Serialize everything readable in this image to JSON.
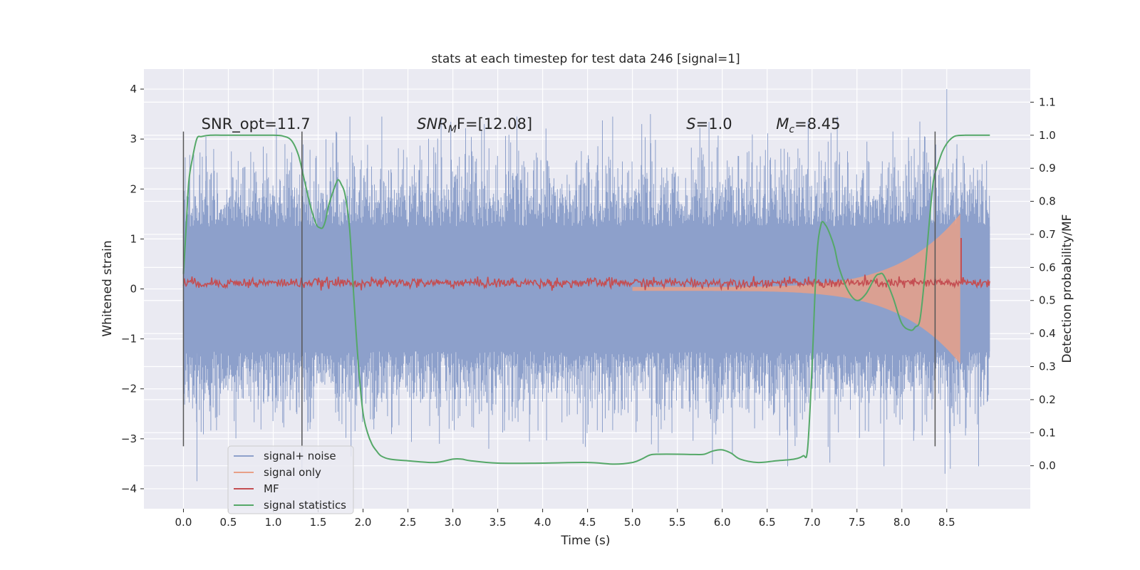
{
  "chart_data": {
    "type": "line",
    "title": "stats at each timestep for test data 246 [signal=1]",
    "xlabel": "Time (s)",
    "ylabel": "Whitened strain",
    "ylabel_right": "Detection probability/MF",
    "xlim": [
      -0.44,
      9.43
    ],
    "ylim": [
      -4.4,
      4.4
    ],
    "ylim_right": [
      -0.13,
      1.2
    ],
    "x_ticks": [
      0.0,
      0.5,
      1.0,
      1.5,
      2.0,
      2.5,
      3.0,
      3.5,
      4.0,
      4.5,
      5.0,
      5.5,
      6.0,
      6.5,
      7.0,
      7.5,
      8.0,
      8.5
    ],
    "x_tick_labels": [
      "0.0",
      "0.5",
      "1.0",
      "1.5",
      "2.0",
      "2.5",
      "3.0",
      "3.5",
      "4.0",
      "4.5",
      "5.0",
      "5.5",
      "6.0",
      "6.5",
      "7.0",
      "7.5",
      "8.0",
      "8.5"
    ],
    "y_ticks": [
      -4,
      -3,
      -2,
      -1,
      0,
      1,
      2,
      3,
      4
    ],
    "y_tick_labels": [
      "−4",
      "−3",
      "−2",
      "−1",
      "0",
      "1",
      "2",
      "3",
      "4"
    ],
    "y_right_ticks": [
      0.0,
      0.1,
      0.2,
      0.3,
      0.4,
      0.5,
      0.6,
      0.7,
      0.8,
      0.9,
      1.0,
      1.1
    ],
    "y_right_tick_labels": [
      "0.0",
      "0.1",
      "0.2",
      "0.3",
      "0.4",
      "0.5",
      "0.6",
      "0.7",
      "0.8",
      "0.9",
      "1.0",
      "1.1"
    ],
    "grid": true,
    "legend_position": "lower-left",
    "annotations": [
      {
        "label": "SNR_opt=11.7",
        "x": 0.2,
        "y": 3.2,
        "italic": false
      },
      {
        "label": "SNR",
        "sub": "M",
        "suffix": "F=[12.08]",
        "x": 2.6,
        "y": 3.2,
        "italic": true
      },
      {
        "label": "S",
        "suffix": "=1.0",
        "x": 5.6,
        "y": 3.2,
        "italic": true
      },
      {
        "label": "M",
        "sub": "c",
        "suffix": "=8.45",
        "x": 6.6,
        "y": 3.2,
        "italic": true
      }
    ],
    "vertical_lines": [
      {
        "x": 0.0,
        "y_range": [
          -3.15,
          3.15
        ]
      },
      {
        "x": 1.32,
        "y_range": [
          -3.15,
          3.15
        ]
      },
      {
        "x": 8.37,
        "y_range": [
          -3.15,
          3.15
        ]
      }
    ],
    "series": [
      {
        "name": "signal+ noise",
        "axis": "left",
        "color": "#8da0cb",
        "t_range": [
          0.0,
          8.98
        ],
        "core_amplitude": 1.25,
        "peak_max": 4.0,
        "peak_min": -3.85
      },
      {
        "name": "signal only",
        "axis": "left",
        "color": "#e8a088",
        "chirp_start": 5.0,
        "chirp_end": 8.65,
        "max_amplitude": 1.5
      },
      {
        "name": "MF",
        "axis": "left",
        "color": "#c44e52",
        "baseline": 0.12,
        "spike_x": 8.66,
        "spike_y": 1.02
      },
      {
        "name": "signal statistics",
        "axis": "right",
        "color": "#55a868",
        "x": [
          0.0,
          0.03,
          0.06,
          0.1,
          0.15,
          0.2,
          0.3,
          0.5,
          0.8,
          1.0,
          1.1,
          1.2,
          1.28,
          1.35,
          1.42,
          1.48,
          1.52,
          1.55,
          1.58,
          1.62,
          1.68,
          1.72,
          1.76,
          1.8,
          1.85,
          1.9,
          1.95,
          2.0,
          2.05,
          2.1,
          2.15,
          2.2,
          2.3,
          2.5,
          2.8,
          3.0,
          3.1,
          3.2,
          3.5,
          4.0,
          4.5,
          4.8,
          5.0,
          5.1,
          5.2,
          5.3,
          5.5,
          5.7,
          5.8,
          5.9,
          6.0,
          6.1,
          6.2,
          6.4,
          6.6,
          6.8,
          6.9,
          6.95,
          7.0,
          7.05,
          7.1,
          7.15,
          7.2,
          7.25,
          7.3,
          7.4,
          7.5,
          7.6,
          7.7,
          7.75,
          7.8,
          7.9,
          8.0,
          8.1,
          8.15,
          8.2,
          8.25,
          8.3,
          8.35,
          8.4,
          8.45,
          8.5,
          8.55,
          8.6,
          8.7,
          8.8,
          8.9,
          8.98
        ],
        "y": [
          0.58,
          0.72,
          0.86,
          0.93,
          0.99,
          0.996,
          1.0,
          1.0,
          1.0,
          1.0,
          0.998,
          0.985,
          0.94,
          0.86,
          0.78,
          0.73,
          0.72,
          0.72,
          0.74,
          0.79,
          0.84,
          0.865,
          0.85,
          0.82,
          0.72,
          0.5,
          0.3,
          0.16,
          0.1,
          0.065,
          0.045,
          0.03,
          0.02,
          0.015,
          0.01,
          0.02,
          0.02,
          0.015,
          0.008,
          0.008,
          0.01,
          0.005,
          0.01,
          0.02,
          0.033,
          0.035,
          0.035,
          0.034,
          0.035,
          0.045,
          0.048,
          0.038,
          0.02,
          0.01,
          0.015,
          0.02,
          0.03,
          0.05,
          0.3,
          0.62,
          0.73,
          0.728,
          0.7,
          0.66,
          0.6,
          0.53,
          0.5,
          0.52,
          0.57,
          0.58,
          0.575,
          0.51,
          0.43,
          0.41,
          0.42,
          0.44,
          0.56,
          0.72,
          0.86,
          0.91,
          0.95,
          0.975,
          0.99,
          0.998,
          1.0,
          1.0,
          1.0,
          1.0
        ]
      }
    ]
  }
}
